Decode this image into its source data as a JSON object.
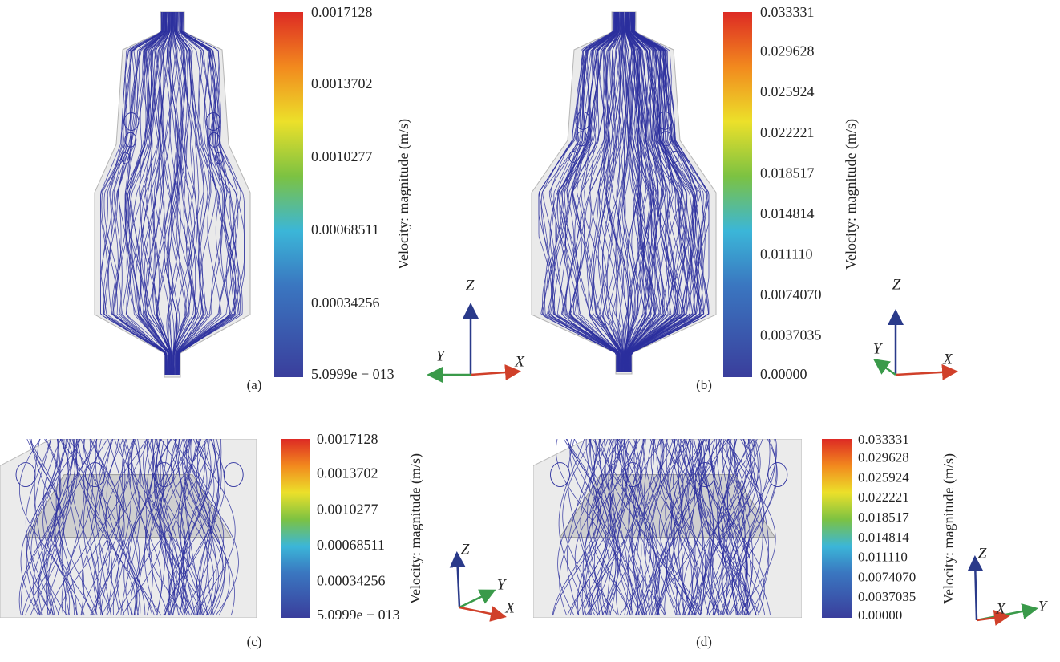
{
  "panels": [
    {
      "label": "(a)",
      "colorbar": {
        "title": "Velocity: magnitude (m/s)",
        "ticks": [
          "0.0017128",
          "0.0013702",
          "0.0010277",
          "0.00068511",
          "0.00034256",
          "5.0999e − 013"
        ]
      },
      "axes": [
        "Z",
        "Y",
        "X"
      ]
    },
    {
      "label": "(b)",
      "colorbar": {
        "title": "Velocity: magnitude (m/s)",
        "ticks": [
          "0.033331",
          "0.029628",
          "0.025924",
          "0.022221",
          "0.018517",
          "0.014814",
          "0.011110",
          "0.0074070",
          "0.0037035",
          "0.00000"
        ]
      },
      "axes": [
        "Z",
        "Y",
        "X"
      ]
    },
    {
      "label": "(c)",
      "colorbar": {
        "title": "Velocity: magnitude (m/s)",
        "ticks": [
          "0.0017128",
          "0.0013702",
          "0.0010277",
          "0.00068511",
          "0.00034256",
          "5.0999e − 013"
        ]
      },
      "axes": [
        "Z",
        "Y",
        "X"
      ]
    },
    {
      "label": "(d)",
      "colorbar": {
        "title": "Velocity: magnitude (m/s)",
        "ticks": [
          "0.033331",
          "0.029628",
          "0.025924",
          "0.022221",
          "0.018517",
          "0.014814",
          "0.011110",
          "0.0074070",
          "0.0037035",
          "0.00000"
        ]
      },
      "axes": [
        "Z",
        "Y",
        "X"
      ]
    }
  ]
}
